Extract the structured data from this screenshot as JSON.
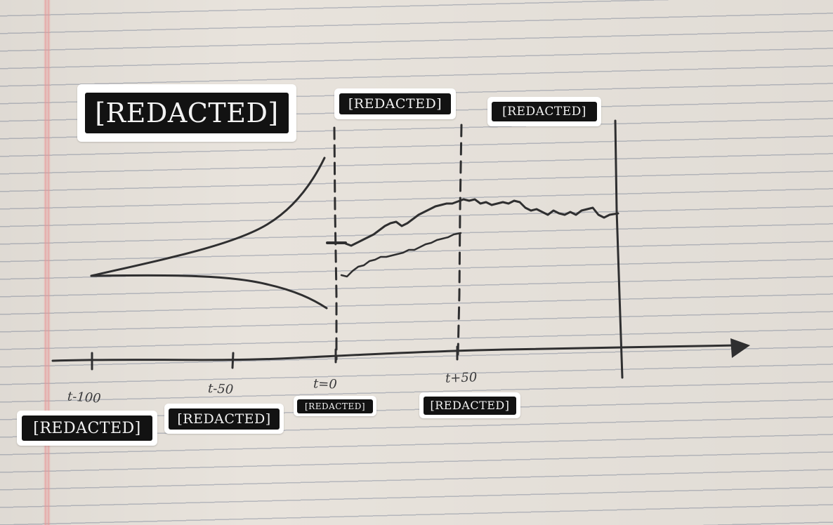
{
  "stickers": {
    "title": "[REDACTED]",
    "phase_a": "[REDACTED]",
    "phase_b": "[REDACTED]",
    "tick_a": "[REDACTED]",
    "tick_b": "[REDACTED]",
    "tick_c": "[REDACTED]",
    "tick_d": "[REDACTED]"
  },
  "axis": {
    "tick_labels": [
      "t-100",
      "t-50",
      "t=0",
      "t+50"
    ]
  },
  "colors": {
    "ink": "#2f2f30",
    "paper": "#e8e3dc",
    "sticker_bg": "#121212"
  }
}
